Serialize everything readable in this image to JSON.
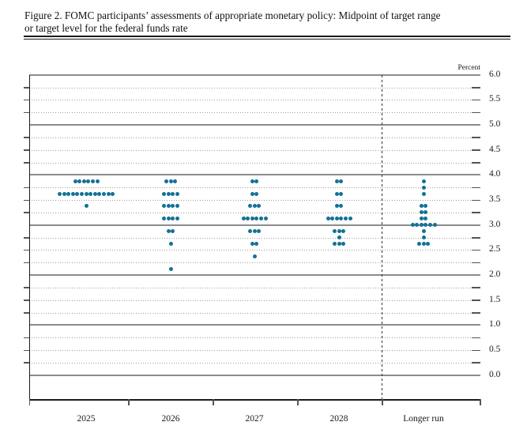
{
  "figure": {
    "title_line1": "Figure 2. FOMC participants’ assessments of appropriate monetary policy: Midpoint of target range",
    "title_line2": "or target level for the federal funds rate"
  },
  "chart_data": {
    "type": "scatter",
    "subtype": "fomc-dot-plot",
    "title": "FOMC participants’ assessments of appropriate monetary policy: Midpoint of target range or target level for the federal funds rate",
    "unit_label": "Percent",
    "ylim": [
      0.0,
      6.0
    ],
    "grid_step": 0.25,
    "label_step": 0.5,
    "yticklabels": [
      "6.0",
      "5.5",
      "5.0",
      "4.5",
      "4.0",
      "3.5",
      "3.0",
      "2.5",
      "2.0",
      "1.5",
      "1.0",
      "0.5",
      "0.0"
    ],
    "grid": "dotted-quarters-solid-integers",
    "separator_before_category": "Longer run",
    "dot_color": "#137195",
    "categories": [
      "2025",
      "2026",
      "2027",
      "2028",
      "Longer run"
    ],
    "series": [
      {
        "category": "2025",
        "dots": [
          {
            "rate": 3.875,
            "count": 6
          },
          {
            "rate": 3.625,
            "count": 13
          },
          {
            "rate": 3.375,
            "count": 1
          }
        ]
      },
      {
        "category": "2026",
        "dots": [
          {
            "rate": 3.875,
            "count": 3
          },
          {
            "rate": 3.625,
            "count": 4
          },
          {
            "rate": 3.375,
            "count": 4
          },
          {
            "rate": 3.125,
            "count": 4
          },
          {
            "rate": 2.875,
            "count": 2
          },
          {
            "rate": 2.625,
            "count": 1
          },
          {
            "rate": 2.125,
            "count": 1
          }
        ]
      },
      {
        "category": "2027",
        "dots": [
          {
            "rate": 3.875,
            "count": 2
          },
          {
            "rate": 3.625,
            "count": 2
          },
          {
            "rate": 3.375,
            "count": 3
          },
          {
            "rate": 3.125,
            "count": 6
          },
          {
            "rate": 2.875,
            "count": 3
          },
          {
            "rate": 2.625,
            "count": 2
          },
          {
            "rate": 2.375,
            "count": 1
          }
        ]
      },
      {
        "category": "2028",
        "dots": [
          {
            "rate": 3.875,
            "count": 2
          },
          {
            "rate": 3.625,
            "count": 2
          },
          {
            "rate": 3.375,
            "count": 2
          },
          {
            "rate": 3.125,
            "count": 6
          },
          {
            "rate": 2.875,
            "count": 3
          },
          {
            "rate": 2.75,
            "count": 1
          },
          {
            "rate": 2.625,
            "count": 3
          }
        ]
      },
      {
        "category": "Longer run",
        "dots": [
          {
            "rate": 3.875,
            "count": 1
          },
          {
            "rate": 3.75,
            "count": 1
          },
          {
            "rate": 3.625,
            "count": 1
          },
          {
            "rate": 3.375,
            "count": 2
          },
          {
            "rate": 3.25,
            "count": 2
          },
          {
            "rate": 3.125,
            "count": 2
          },
          {
            "rate": 3.0,
            "count": 6
          },
          {
            "rate": 2.875,
            "count": 1
          },
          {
            "rate": 2.75,
            "count": 1
          },
          {
            "rate": 2.625,
            "count": 3
          }
        ]
      }
    ]
  }
}
